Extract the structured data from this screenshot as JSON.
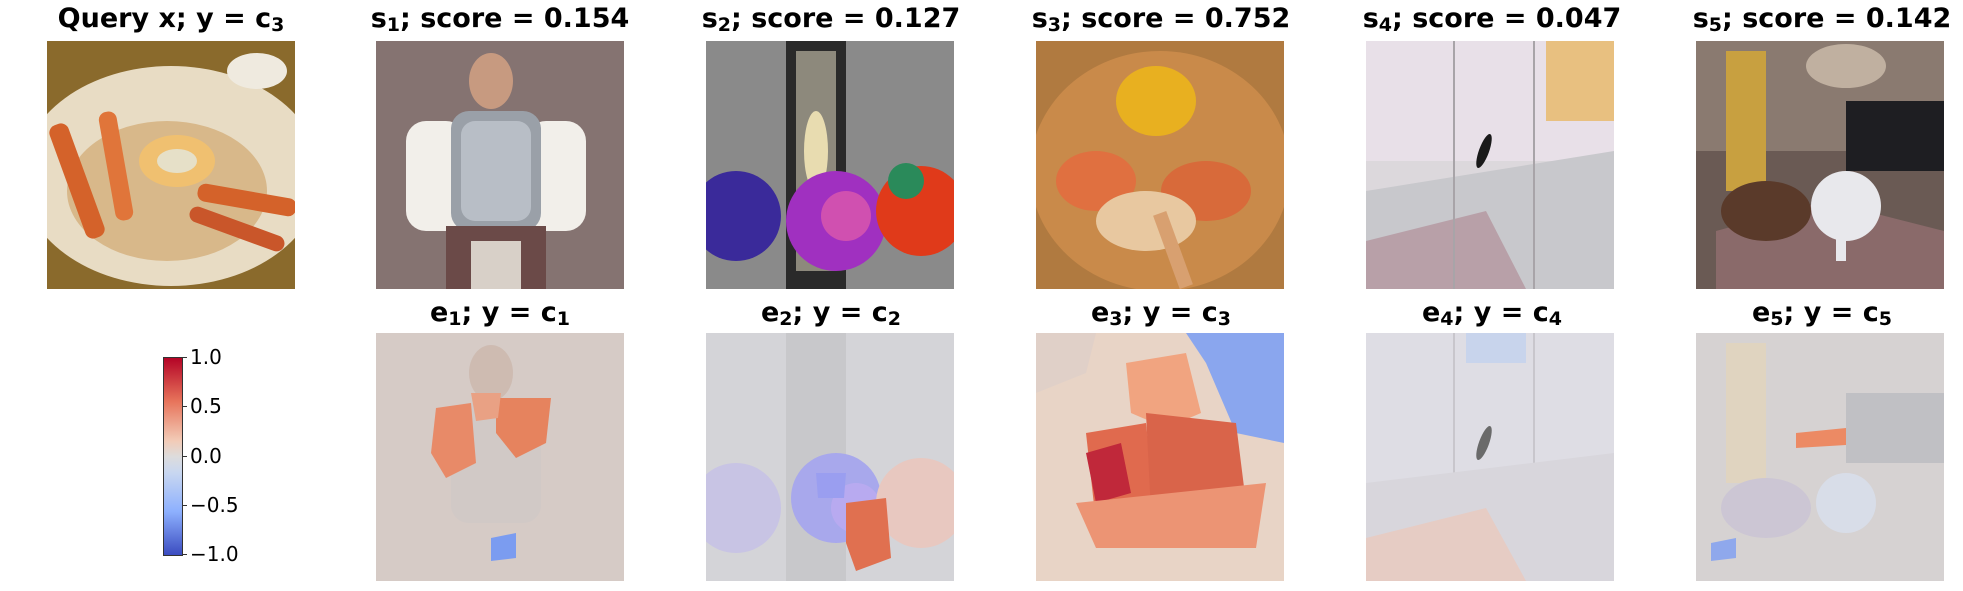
{
  "top_row": [
    {
      "prefix": "Query x; y = c",
      "sub": "3",
      "suffix": ""
    },
    {
      "prefix": "s",
      "sub": "1",
      "suffix": "; score = 0.154"
    },
    {
      "prefix": "s",
      "sub": "2",
      "suffix": "; score = 0.127"
    },
    {
      "prefix": "s",
      "sub": "3",
      "suffix": "; score = 0.752"
    },
    {
      "prefix": "s",
      "sub": "4",
      "suffix": "; score = 0.047"
    },
    {
      "prefix": "s",
      "sub": "5",
      "suffix": "; score = 0.142"
    }
  ],
  "bottom_row": [
    {
      "prefix": "e",
      "sub": "1",
      "mid": "; y = c",
      "sub2": "1"
    },
    {
      "prefix": "e",
      "sub": "2",
      "mid": "; y = c",
      "sub2": "2"
    },
    {
      "prefix": "e",
      "sub": "3",
      "mid": "; y = c",
      "sub2": "3"
    },
    {
      "prefix": "e",
      "sub": "4",
      "mid": "; y = c",
      "sub2": "4"
    },
    {
      "prefix": "e",
      "sub": "5",
      "mid": "; y = c",
      "sub2": "5"
    }
  ],
  "colorbar": {
    "ticks": [
      "1.0",
      "0.5",
      "0.0",
      "−0.5",
      "−1.0"
    ],
    "range": [
      -1.0,
      1.0
    ],
    "colormap": "coolwarm"
  }
}
